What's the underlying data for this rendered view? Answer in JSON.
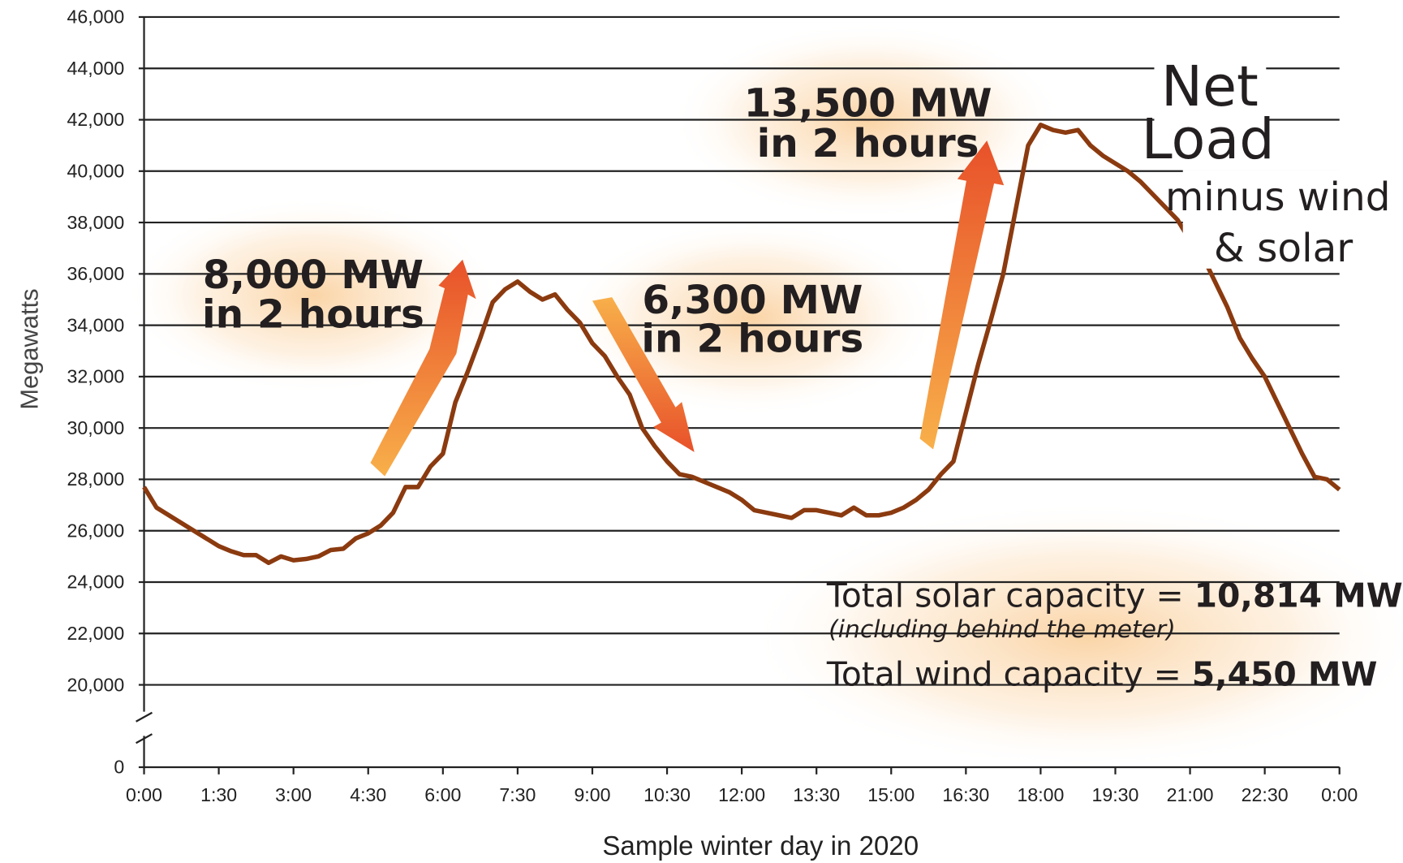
{
  "chart_data": {
    "type": "line",
    "y_label": "Megawatts",
    "x_label": "Sample winter day in 2020",
    "x": [
      0,
      0.25,
      0.5,
      0.75,
      1,
      1.25,
      1.5,
      1.75,
      2,
      2.25,
      2.5,
      2.75,
      3,
      3.25,
      3.5,
      3.75,
      4,
      4.25,
      4.5,
      4.75,
      5,
      5.25,
      5.5,
      5.75,
      6,
      6.25,
      6.5,
      6.75,
      7,
      7.25,
      7.5,
      7.75,
      8,
      8.25,
      8.5,
      8.75,
      9,
      9.25,
      9.5,
      9.75,
      10,
      10.25,
      10.5,
      10.75,
      11,
      11.25,
      11.5,
      11.75,
      12,
      12.25,
      12.5,
      12.75,
      13,
      13.25,
      13.5,
      13.75,
      14,
      14.25,
      14.5,
      14.75,
      15,
      15.25,
      15.5,
      15.75,
      16,
      16.25,
      16.5,
      16.75,
      17,
      17.25,
      17.5,
      17.75,
      18,
      18.25,
      18.5,
      18.75,
      19,
      19.25,
      19.5,
      19.75,
      20,
      20.25,
      20.5,
      20.75,
      21,
      21.25,
      21.5,
      21.75,
      22,
      22.25,
      22.5,
      22.75,
      23,
      23.25,
      23.5,
      23.75,
      24
    ],
    "series": [
      {
        "name": "Net Load minus wind & solar",
        "color": "#8b3a0f",
        "values": [
          27700,
          26900,
          26600,
          26300,
          26000,
          25700,
          25400,
          25200,
          25050,
          25050,
          24750,
          25000,
          24850,
          24900,
          25000,
          25250,
          25300,
          25700,
          25900,
          26200,
          26700,
          27700,
          27700,
          28500,
          29000,
          31000,
          32200,
          33500,
          34900,
          35400,
          35700,
          35300,
          35000,
          35200,
          34600,
          34100,
          33300,
          32800,
          32000,
          31300,
          30000,
          29300,
          28700,
          28200,
          28100,
          27900,
          27700,
          27500,
          27200,
          26800,
          26700,
          26600,
          26500,
          26800,
          26800,
          26700,
          26600,
          26900,
          26600,
          26600,
          26700,
          26900,
          27200,
          27600,
          28200,
          28700,
          30600,
          32500,
          34200,
          36000,
          38500,
          41000,
          41800,
          41600,
          41500,
          41600,
          41000,
          40600,
          40300,
          40000,
          39600,
          39100,
          38600,
          38100,
          37300,
          36700,
          35700,
          34700,
          33500,
          32700,
          32000,
          31000,
          30000,
          29000,
          28100,
          28000,
          27600
        ]
      }
    ],
    "xlim": [
      0,
      24
    ],
    "xticks": [
      {
        "value": 0,
        "label": "0:00"
      },
      {
        "value": 1.5,
        "label": "1:30"
      },
      {
        "value": 3,
        "label": "3:00"
      },
      {
        "value": 4.5,
        "label": "4:30"
      },
      {
        "value": 6,
        "label": "6:00"
      },
      {
        "value": 7.5,
        "label": "7:30"
      },
      {
        "value": 9,
        "label": "9:00"
      },
      {
        "value": 10.5,
        "label": "10:30"
      },
      {
        "value": 12,
        "label": "12:00"
      },
      {
        "value": 13.5,
        "label": "13:30"
      },
      {
        "value": 15,
        "label": "15:00"
      },
      {
        "value": 16.5,
        "label": "16:30"
      },
      {
        "value": 18,
        "label": "18:00"
      },
      {
        "value": 19.5,
        "label": "19:30"
      },
      {
        "value": 21,
        "label": "21:00"
      },
      {
        "value": 22.5,
        "label": "22:30"
      },
      {
        "value": 24,
        "label": "0:00"
      }
    ],
    "ylim": [
      0,
      46000
    ],
    "axis_break": [
      0,
      20000
    ],
    "yticks": [
      0,
      {
        "value": 20000,
        "label": "20,000"
      },
      {
        "value": 22000,
        "label": "22,000"
      },
      {
        "value": 24000,
        "label": "24,000"
      },
      {
        "value": 26000,
        "label": "26,000"
      },
      {
        "value": 28000,
        "label": "28,000"
      },
      {
        "value": 30000,
        "label": "30,000"
      },
      {
        "value": 32000,
        "label": "32,000"
      },
      {
        "value": 34000,
        "label": "34,000"
      },
      {
        "value": 36000,
        "label": "36,000"
      },
      {
        "value": 38000,
        "label": "38,000"
      },
      {
        "value": 40000,
        "label": "40,000"
      },
      {
        "value": 42000,
        "label": "42,000"
      },
      {
        "value": 44000,
        "label": "44,000"
      },
      {
        "value": 46000,
        "label": "46,000"
      }
    ],
    "grid": true,
    "annotations": {
      "ramp1": [
        "8,000 MW",
        "in 2 hours"
      ],
      "ramp2": [
        "6,300 MW",
        "in 2 hours"
      ],
      "ramp3": [
        "13,500 MW",
        "in 2 hours"
      ],
      "net_load": [
        "Net",
        "Load",
        "minus wind",
        "& solar"
      ],
      "solar": [
        "Total solar capacity = ",
        "10,814 MW"
      ],
      "solar_note": "(including behind the meter)",
      "wind": [
        "Total wind capacity = ",
        "5,450 MW"
      ]
    }
  }
}
